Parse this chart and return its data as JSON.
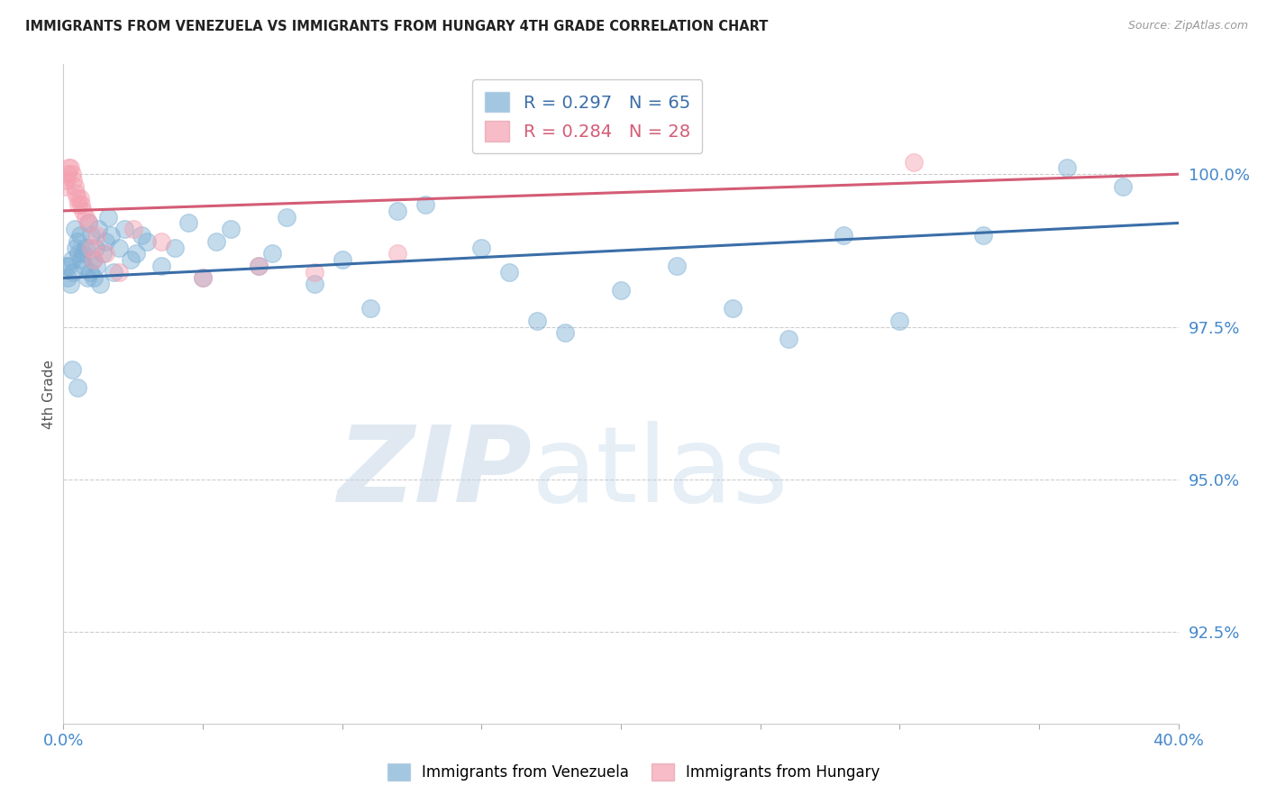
{
  "title": "IMMIGRANTS FROM VENEZUELA VS IMMIGRANTS FROM HUNGARY 4TH GRADE CORRELATION CHART",
  "source": "Source: ZipAtlas.com",
  "ylabel": "4th Grade",
  "ytick_labels": [
    "92.5%",
    "95.0%",
    "97.5%",
    "100.0%"
  ],
  "ytick_values": [
    92.5,
    95.0,
    97.5,
    100.0
  ],
  "xlim": [
    0.0,
    40.0
  ],
  "ylim": [
    91.0,
    101.8
  ],
  "legend_blue_r": "R = 0.297",
  "legend_blue_n": "N = 65",
  "legend_pink_r": "R = 0.284",
  "legend_pink_n": "N = 28",
  "label_venezuela": "Immigrants from Venezuela",
  "label_hungary": "Immigrants from Hungary",
  "blue_color": "#7EB0D5",
  "pink_color": "#F4A0B0",
  "blue_line_color": "#3A6EA8",
  "pink_line_color": "#D45C75",
  "title_color": "#222222",
  "axis_label_color": "#4488CC",
  "blue_scatter_x": [
    0.1,
    0.15,
    0.2,
    0.25,
    0.3,
    0.35,
    0.4,
    0.45,
    0.5,
    0.55,
    0.6,
    0.65,
    0.7,
    0.75,
    0.8,
    0.85,
    0.9,
    0.95,
    1.0,
    1.05,
    1.1,
    1.15,
    1.2,
    1.25,
    1.3,
    1.4,
    1.5,
    1.6,
    1.7,
    1.8,
    2.0,
    2.2,
    2.4,
    2.6,
    2.8,
    3.0,
    3.5,
    4.0,
    4.5,
    5.0,
    5.5,
    6.0,
    7.0,
    7.5,
    8.0,
    9.0,
    10.0,
    11.0,
    12.0,
    13.0,
    15.0,
    16.0,
    17.0,
    18.0,
    20.0,
    22.0,
    24.0,
    26.0,
    28.0,
    30.0,
    33.0,
    36.0,
    38.0,
    0.3,
    0.5
  ],
  "blue_scatter_y": [
    98.5,
    98.3,
    98.5,
    98.2,
    98.6,
    98.4,
    99.1,
    98.8,
    98.9,
    98.7,
    99.0,
    98.6,
    98.7,
    98.5,
    98.8,
    98.3,
    99.2,
    98.4,
    99.0,
    98.6,
    98.3,
    98.8,
    98.5,
    99.1,
    98.2,
    98.7,
    98.9,
    99.3,
    99.0,
    98.4,
    98.8,
    99.1,
    98.6,
    98.7,
    99.0,
    98.9,
    98.5,
    98.8,
    99.2,
    98.3,
    98.9,
    99.1,
    98.5,
    98.7,
    99.3,
    98.2,
    98.6,
    97.8,
    99.4,
    99.5,
    98.8,
    98.4,
    97.6,
    97.4,
    98.1,
    98.5,
    97.8,
    97.3,
    99.0,
    97.6,
    99.0,
    100.1,
    99.8,
    96.8,
    96.5
  ],
  "pink_scatter_x": [
    0.05,
    0.1,
    0.15,
    0.2,
    0.25,
    0.3,
    0.35,
    0.4,
    0.45,
    0.5,
    0.55,
    0.6,
    0.65,
    0.7,
    0.8,
    0.9,
    1.0,
    1.1,
    1.2,
    1.5,
    2.0,
    2.5,
    3.5,
    5.0,
    7.0,
    9.0,
    12.0,
    30.5
  ],
  "pink_scatter_y": [
    99.8,
    99.9,
    100.0,
    100.1,
    100.1,
    100.0,
    99.9,
    99.8,
    99.7,
    99.6,
    99.5,
    99.6,
    99.5,
    99.4,
    99.3,
    99.2,
    98.8,
    98.6,
    99.0,
    98.7,
    98.4,
    99.1,
    98.9,
    98.3,
    98.5,
    98.4,
    98.7,
    100.2
  ],
  "blue_trendline_x": [
    0.0,
    40.0
  ],
  "blue_trendline_y": [
    98.3,
    99.2
  ],
  "pink_trendline_x": [
    0.0,
    40.0
  ],
  "pink_trendline_y": [
    99.4,
    100.0
  ],
  "background_color": "#ffffff",
  "grid_color": "#cccccc"
}
